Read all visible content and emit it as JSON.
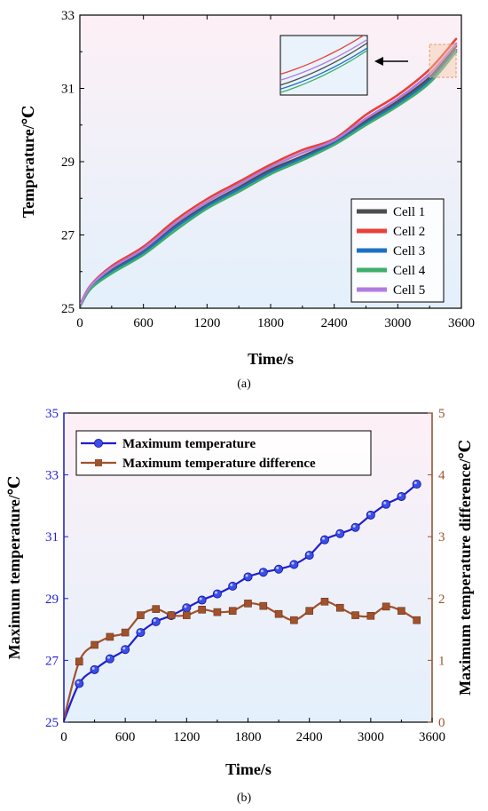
{
  "chart_data": [
    {
      "type": "line",
      "xlabel": "Time/s",
      "ylabel": "Temperature/℃",
      "xlim": [
        0,
        3600
      ],
      "ylim": [
        25,
        33
      ],
      "xticks": [
        0,
        600,
        1200,
        1800,
        2400,
        3000,
        3600
      ],
      "yticks": [
        25,
        27,
        29,
        31,
        33
      ],
      "panel_label": "(a)",
      "legend": "bottom-right",
      "inset": "zoom of the region near x=3300–3550, y≈31.3–32.2, drawn at top-right with an arrow",
      "x": [
        0,
        100,
        300,
        600,
        900,
        1200,
        1500,
        1800,
        2100,
        2400,
        2700,
        3000,
        3300,
        3550
      ],
      "series": [
        {
          "name": "Cell 1",
          "color": "#4d4d4d",
          "values": [
            25.05,
            25.58,
            26.05,
            26.58,
            27.25,
            27.82,
            28.3,
            28.78,
            29.15,
            29.55,
            30.12,
            30.65,
            31.3,
            32.15
          ]
        },
        {
          "name": "Cell 2",
          "color": "#e8413a",
          "values": [
            25.08,
            25.62,
            26.15,
            26.68,
            27.4,
            27.98,
            28.45,
            28.92,
            29.32,
            29.62,
            30.28,
            30.82,
            31.52,
            32.35
          ]
        },
        {
          "name": "Cell 3",
          "color": "#1f6fc5",
          "values": [
            25.04,
            25.55,
            26.0,
            26.52,
            27.2,
            27.78,
            28.25,
            28.72,
            29.1,
            29.5,
            30.05,
            30.58,
            31.22,
            32.05
          ]
        },
        {
          "name": "Cell 4",
          "color": "#3fae6a",
          "values": [
            25.03,
            25.52,
            25.95,
            26.46,
            27.12,
            27.72,
            28.18,
            28.66,
            29.04,
            29.46,
            30.0,
            30.52,
            31.15,
            32.0
          ]
        },
        {
          "name": "Cell 5",
          "color": "#b07ce0",
          "values": [
            25.06,
            25.6,
            26.1,
            26.62,
            27.32,
            27.9,
            28.38,
            28.85,
            29.24,
            29.58,
            30.18,
            30.72,
            31.4,
            32.22
          ]
        }
      ]
    },
    {
      "type": "line",
      "xlabel": "Time/s",
      "ylabel": "Maximum temperature/℃",
      "ylabel_right": "Maximum temperature difference/℃",
      "xlim": [
        0,
        3600
      ],
      "ylim": [
        25,
        35
      ],
      "ylim_right": [
        0,
        5
      ],
      "xticks": [
        0,
        600,
        1200,
        1800,
        2400,
        3000,
        3600
      ],
      "yticks": [
        25,
        27,
        29,
        31,
        33,
        35
      ],
      "yticks_right": [
        0,
        1,
        2,
        3,
        4,
        5
      ],
      "panel_label": "(b)",
      "legend": "top-left",
      "series": [
        {
          "name": "Maximum temperature",
          "color": "#1f1fd0",
          "marker": "circle",
          "axis": "left",
          "x": [
            0,
            150,
            300,
            450,
            600,
            750,
            900,
            1050,
            1200,
            1350,
            1500,
            1650,
            1800,
            1950,
            2100,
            2250,
            2400,
            2550,
            2700,
            2850,
            3000,
            3150,
            3300,
            3450
          ],
          "values": [
            25.05,
            26.25,
            26.7,
            27.05,
            27.35,
            27.9,
            28.25,
            28.45,
            28.7,
            28.95,
            29.15,
            29.4,
            29.7,
            29.85,
            29.95,
            30.1,
            30.4,
            30.9,
            31.1,
            31.3,
            31.7,
            32.05,
            32.3,
            32.7
          ]
        },
        {
          "name": "Maximum temperature difference",
          "color": "#a0522d",
          "marker": "square",
          "axis": "right",
          "x": [
            0,
            150,
            300,
            450,
            600,
            750,
            900,
            1050,
            1200,
            1350,
            1500,
            1650,
            1800,
            1950,
            2100,
            2250,
            2400,
            2550,
            2700,
            2850,
            3000,
            3150,
            3300,
            3450
          ],
          "values": [
            0.05,
            0.98,
            1.25,
            1.38,
            1.45,
            1.73,
            1.83,
            1.73,
            1.73,
            1.82,
            1.78,
            1.8,
            1.92,
            1.88,
            1.75,
            1.65,
            1.8,
            1.95,
            1.85,
            1.73,
            1.72,
            1.87,
            1.8,
            1.65
          ]
        }
      ]
    }
  ]
}
